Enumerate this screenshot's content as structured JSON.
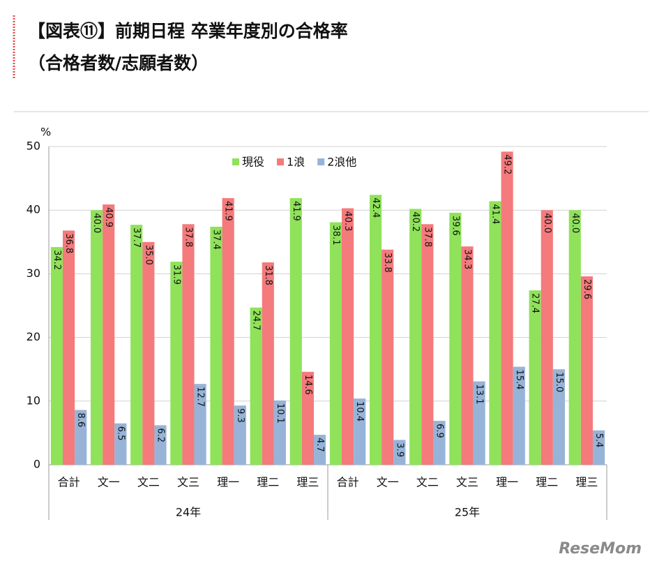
{
  "chart_data": {
    "type": "bar",
    "title": [
      "【図表⑪】前期日程 卒業年度別の合格率",
      "（合格者数/志願者数）"
    ],
    "y_unit": "%",
    "categories": [
      "合計",
      "文一",
      "文二",
      "文三",
      "理一",
      "理二",
      "理三",
      "合計",
      "文一",
      "文二",
      "文三",
      "理一",
      "理二",
      "理三"
    ],
    "groups": [
      "24年",
      "25年"
    ],
    "series": [
      {
        "name": "現役",
        "color": "#8fe25a",
        "values": [
          34.2,
          40.0,
          37.7,
          31.9,
          37.4,
          24.7,
          41.9,
          38.1,
          42.4,
          40.2,
          39.6,
          41.4,
          27.4,
          40.0
        ],
        "value_labels": [
          "34.2",
          "40.0",
          "37.7",
          "31.9",
          "37.4",
          "24.7",
          "41.9",
          "38.1",
          "42.4",
          "40.2",
          "39.6",
          "41.4",
          "27.4",
          "40.0"
        ]
      },
      {
        "name": "1浪",
        "color": "#f47a7c",
        "values": [
          36.8,
          40.9,
          35.0,
          37.8,
          41.9,
          31.8,
          14.6,
          40.3,
          33.8,
          37.8,
          34.3,
          49.2,
          40.0,
          29.6
        ],
        "value_labels": [
          "36.8",
          "40.9",
          "35.0",
          "37.8",
          "41.9",
          "31.8",
          "14.6",
          "40.3",
          "33.8",
          "37.8",
          "34.3",
          "49.2",
          "40.0",
          "29.6"
        ]
      },
      {
        "name": "2浪他",
        "color": "#97b4d8",
        "values": [
          8.6,
          6.5,
          6.2,
          12.7,
          9.3,
          10.1,
          4.7,
          10.4,
          3.9,
          6.9,
          13.1,
          15.4,
          15.0,
          5.4
        ],
        "value_labels": [
          "8.6",
          "6.5",
          "6.2",
          "12.7",
          "9.3",
          "10.1",
          "4.7",
          "10.4",
          "3.9",
          "6.9",
          "13.1",
          "15.4",
          "15.0",
          "5.4"
        ]
      }
    ],
    "ylim": [
      0,
      50
    ],
    "yticks": [
      0,
      10,
      20,
      30,
      40,
      50
    ],
    "grid": true,
    "watermark": "ReseMom"
  }
}
